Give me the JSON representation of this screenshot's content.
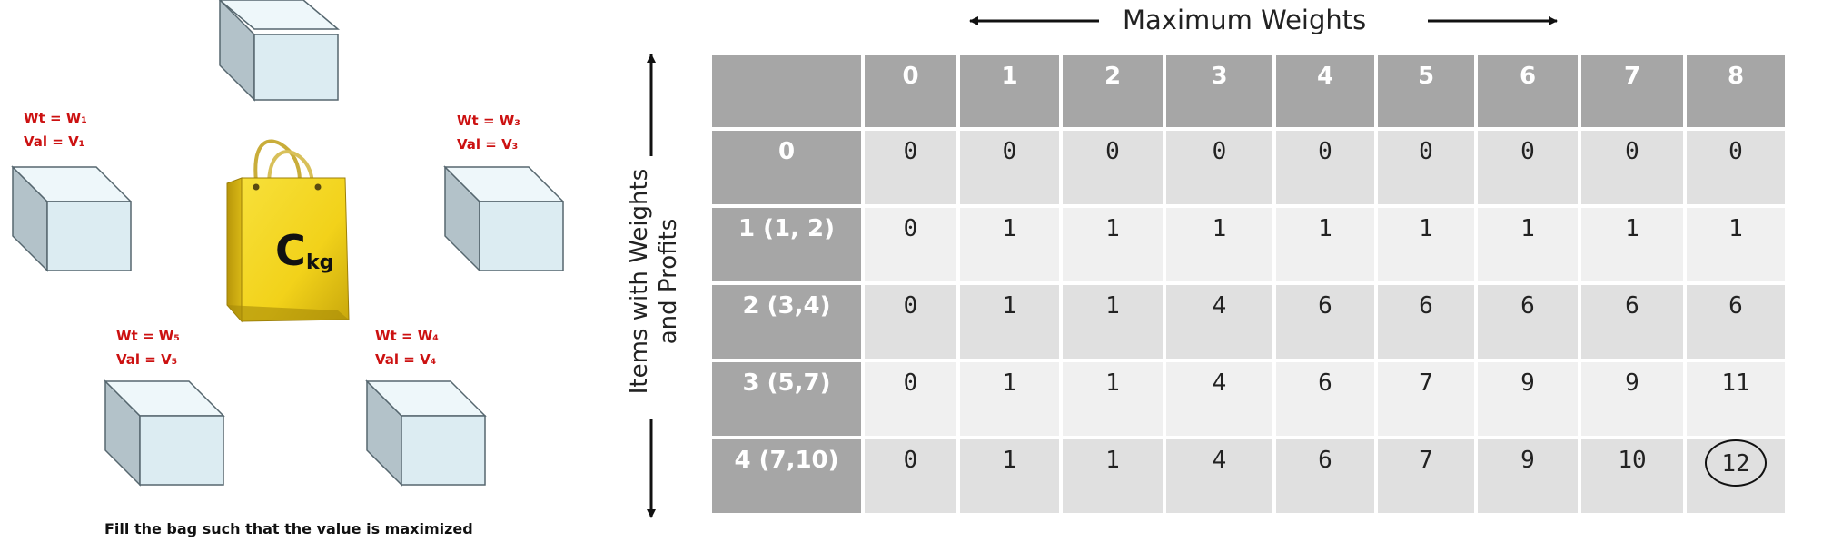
{
  "illustration": {
    "items": [
      {
        "wt": "Wt = W₁",
        "val": "Val = V₁"
      },
      {
        "wt": "Wt = W₃",
        "val": "Val = V₃"
      },
      {
        "wt": "Wt = W₅",
        "val": "Val = V₅"
      },
      {
        "wt": "Wt = W₄",
        "val": "Val = V₄"
      }
    ],
    "bag_capacity": "C",
    "bag_unit": "kg",
    "caption": "Fill the bag such that the value is maximized"
  },
  "table": {
    "top_header": "Maximum Weights",
    "side_header_line1": "Items with Weights",
    "side_header_line2": "and Profits",
    "columns": [
      "",
      "0",
      "1",
      "2",
      "3",
      "4",
      "5",
      "6",
      "7",
      "8"
    ],
    "rows": [
      {
        "label": "0",
        "cells": [
          "0",
          "0",
          "0",
          "0",
          "0",
          "0",
          "0",
          "0",
          "0"
        ]
      },
      {
        "label": "1 (1, 2)",
        "cells": [
          "0",
          "1",
          "1",
          "1",
          "1",
          "1",
          "1",
          "1",
          "1"
        ]
      },
      {
        "label": "2 (3,4)",
        "cells": [
          "0",
          "1",
          "1",
          "4",
          "6",
          "6",
          "6",
          "6",
          "6"
        ]
      },
      {
        "label": "3 (5,7)",
        "cells": [
          "0",
          "1",
          "1",
          "4",
          "6",
          "7",
          "9",
          "9",
          "11"
        ]
      },
      {
        "label": "4 (7,10)",
        "cells": [
          "0",
          "1",
          "1",
          "4",
          "6",
          "7",
          "9",
          "10",
          "12"
        ]
      }
    ],
    "highlighted_value": "12"
  },
  "colors": {
    "header_bg": "#a6a6a6",
    "cell_odd": "#e0e0e0",
    "cell_even": "#f0f0f0",
    "label_red": "#cc1111",
    "bag_yellow": "#f2d21a"
  }
}
